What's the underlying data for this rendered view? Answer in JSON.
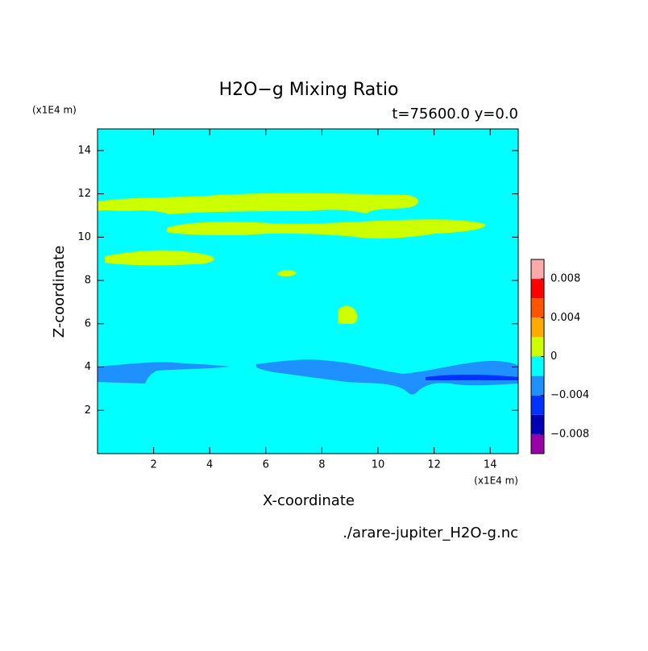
{
  "chart_data": {
    "type": "contour",
    "title": "H2O−g Mixing Ratio",
    "subtitle": "t=75600.0 y=0.0",
    "xlabel": "X-coordinate",
    "ylabel": "Z-coordinate",
    "xunit": "(x1E4 m)",
    "yunit": "(x1E4 m)",
    "footnote": "./arare-jupiter_H2O-g.nc",
    "xlim": [
      0,
      15
    ],
    "ylim": [
      0,
      15
    ],
    "xticks": [
      2,
      4,
      6,
      8,
      10,
      12,
      14
    ],
    "yticks": [
      2,
      4,
      6,
      8,
      10,
      12,
      14
    ],
    "colorbar": {
      "levels": [
        -0.01,
        -0.008,
        -0.006,
        -0.004,
        -0.002,
        0,
        0.002,
        0.004,
        0.006,
        0.008,
        0.01
      ],
      "colors": [
        "#9900aa",
        "#0000b4",
        "#0032ff",
        "#1e90ff",
        "#00ffff",
        "#ccff00",
        "#ffaa00",
        "#ff5500",
        "#ff0000",
        "#ffaaaa"
      ],
      "ticks": [
        {
          "value": -0.008,
          "label": "−0.008"
        },
        {
          "value": -0.004,
          "label": "−0.004"
        },
        0,
        0.004,
        0.008
      ]
    }
  }
}
